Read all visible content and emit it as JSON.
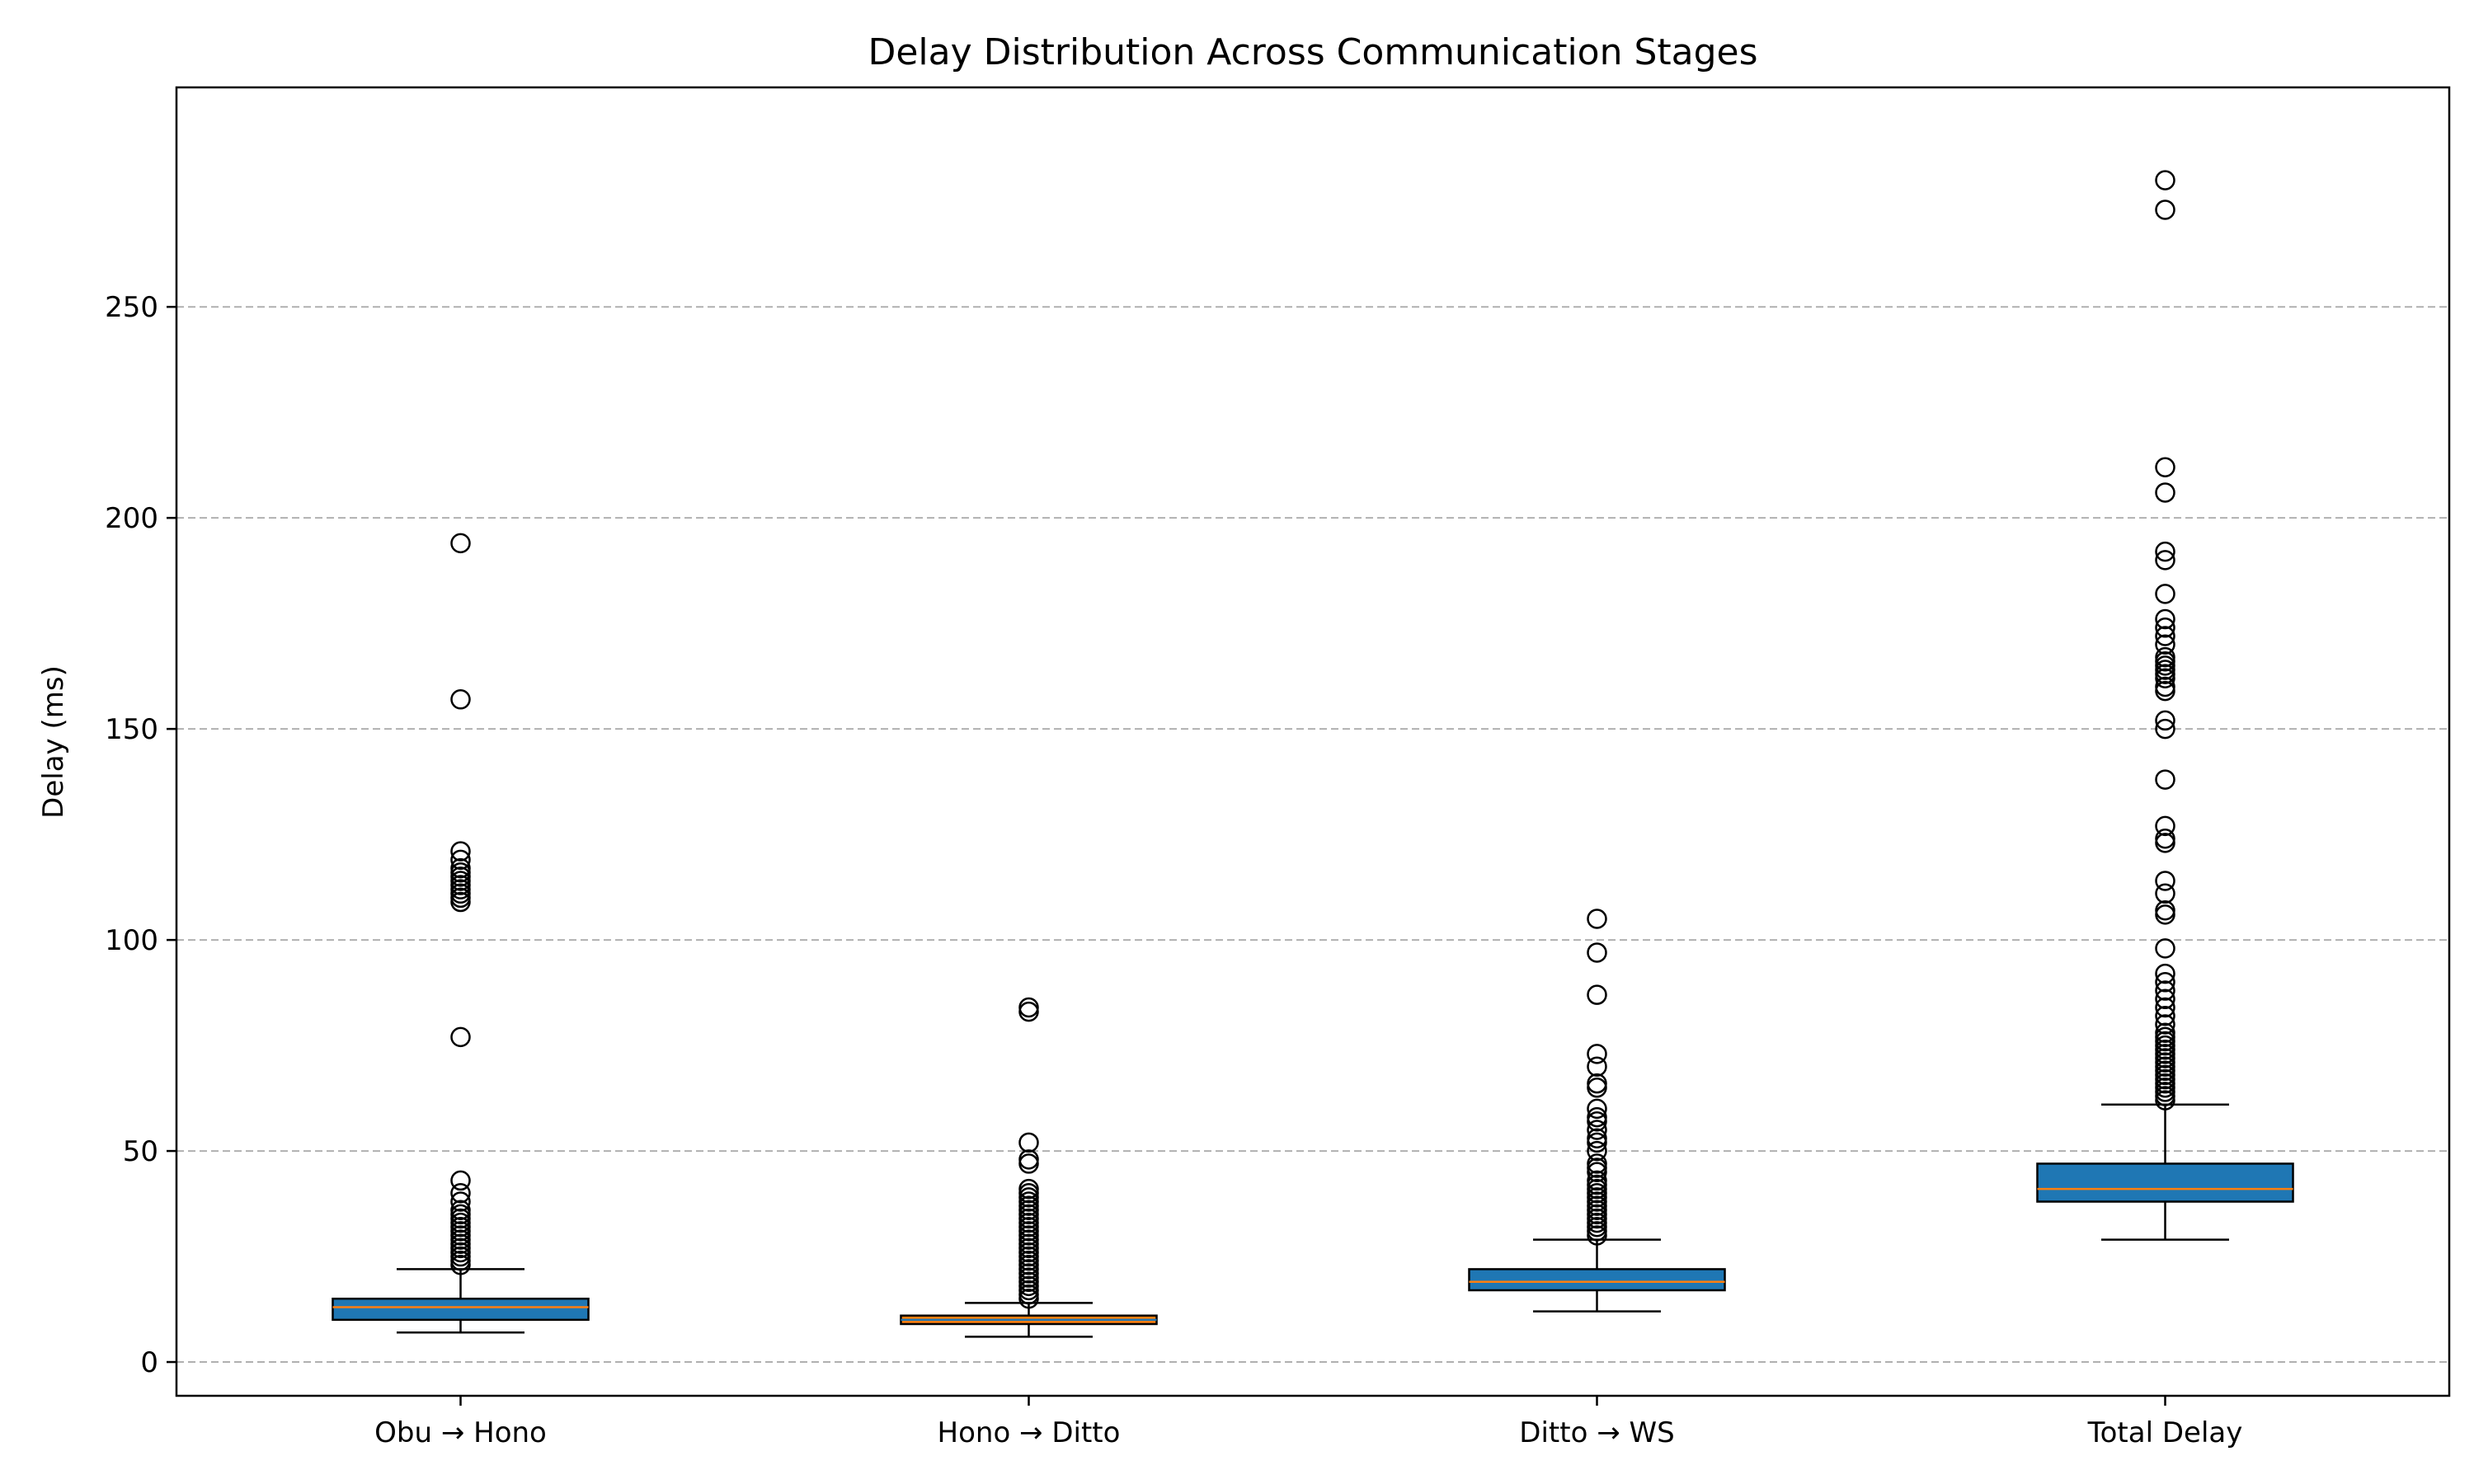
{
  "chart_data": {
    "type": "box",
    "title": "Delay Distribution Across Communication Stages",
    "xlabel": "",
    "ylabel": "Delay (ms)",
    "ylim": [
      -8,
      302
    ],
    "yticks": [
      0,
      50,
      100,
      150,
      200,
      250
    ],
    "grid": "y, dashed",
    "categories": [
      "Obu → Hono",
      "Hono → Ditto",
      "Ditto → WS",
      "Total Delay"
    ],
    "boxes": [
      {
        "name": "Obu → Hono",
        "fill": "#1f77b4",
        "whisker_low": 7,
        "q1": 10,
        "median": 13,
        "q3": 15,
        "whisker_high": 22,
        "outliers": [
          23,
          24,
          25,
          26,
          27,
          28,
          29,
          30,
          31,
          32,
          33,
          34,
          35,
          36,
          38,
          40,
          43,
          77,
          109,
          110,
          111,
          112,
          113,
          114,
          115,
          116,
          117,
          119,
          121,
          157,
          194
        ]
      },
      {
        "name": "Hono → Ditto",
        "fill": "#ff7f0e",
        "whisker_low": 6,
        "q1": 9,
        "median": 10,
        "q3": 11,
        "whisker_high": 14,
        "outliers": [
          15,
          16,
          17,
          18,
          19,
          20,
          21,
          22,
          23,
          24,
          25,
          26,
          27,
          28,
          29,
          30,
          31,
          32,
          33,
          34,
          35,
          36,
          37,
          38,
          39,
          40,
          41,
          47,
          48,
          52,
          83,
          84
        ]
      },
      {
        "name": "Ditto → WS",
        "fill": "#1f77b4",
        "whisker_low": 12,
        "q1": 17,
        "median": 19,
        "q3": 22,
        "whisker_high": 29,
        "outliers": [
          30,
          31,
          32,
          33,
          34,
          35,
          36,
          37,
          38,
          39,
          40,
          41,
          42,
          43,
          45,
          46,
          47,
          50,
          52,
          53,
          55,
          57,
          58,
          60,
          65,
          66,
          70,
          73,
          87,
          97,
          105
        ]
      },
      {
        "name": "Total Delay",
        "fill": "#1f77b4",
        "whisker_low": 29,
        "q1": 38,
        "median": 41,
        "q3": 47,
        "whisker_high": 61,
        "outliers": [
          62,
          63,
          64,
          65,
          66,
          67,
          68,
          69,
          70,
          71,
          72,
          73,
          74,
          75,
          76,
          77,
          78,
          80,
          82,
          84,
          86,
          88,
          90,
          92,
          98,
          106,
          107,
          111,
          114,
          123,
          124,
          127,
          138,
          150,
          152,
          159,
          160,
          162,
          163,
          164,
          165,
          166,
          167,
          170,
          172,
          174,
          176,
          182,
          190,
          192,
          206,
          212,
          273,
          280
        ]
      }
    ],
    "median_color": "#ff7f0e",
    "median_color_on_orange": "#1f77b4"
  }
}
